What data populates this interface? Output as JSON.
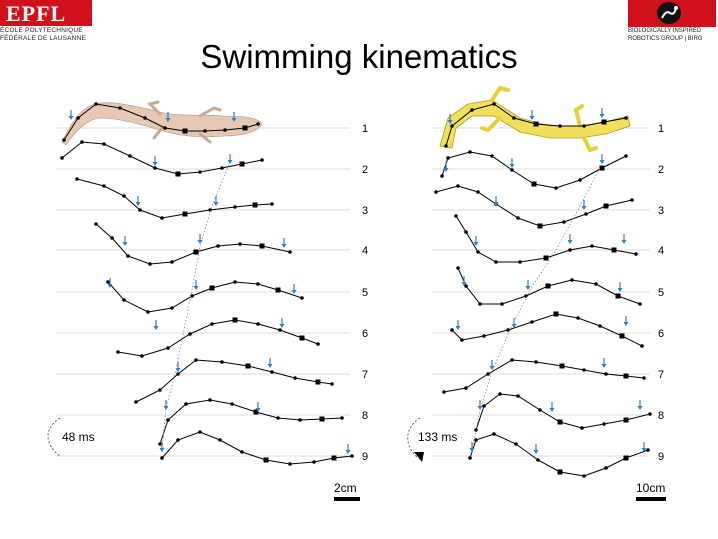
{
  "header": {
    "left_logo": {
      "mark": "EPFL",
      "line1": "ÉCOLE POLYTECHNIQUE",
      "line2": "FÉDÉRALE DE LAUSANNE"
    },
    "right_logo": {
      "line1": "BIOLOGICALLY INSPIRED",
      "line2": "ROBOTICS GROUP | BIRG"
    }
  },
  "title": "Swimming kinematics",
  "left_panel": {
    "rows": [
      "1",
      "2",
      "3",
      "4",
      "5",
      "6",
      "7",
      "8",
      "9"
    ],
    "time_label": "48 ms",
    "scale_label": "2cm",
    "animal_color": "#e6c9b4"
  },
  "right_panel": {
    "rows": [
      "1",
      "2",
      "3",
      "4",
      "5",
      "6",
      "7",
      "8",
      "9"
    ],
    "time_label": "133 ms",
    "scale_label": "10cm",
    "robot_color": "#f2e05a"
  },
  "colors": {
    "arrow": "#2a7fd0",
    "line": "#000000",
    "grid": "#bbbbbb"
  }
}
